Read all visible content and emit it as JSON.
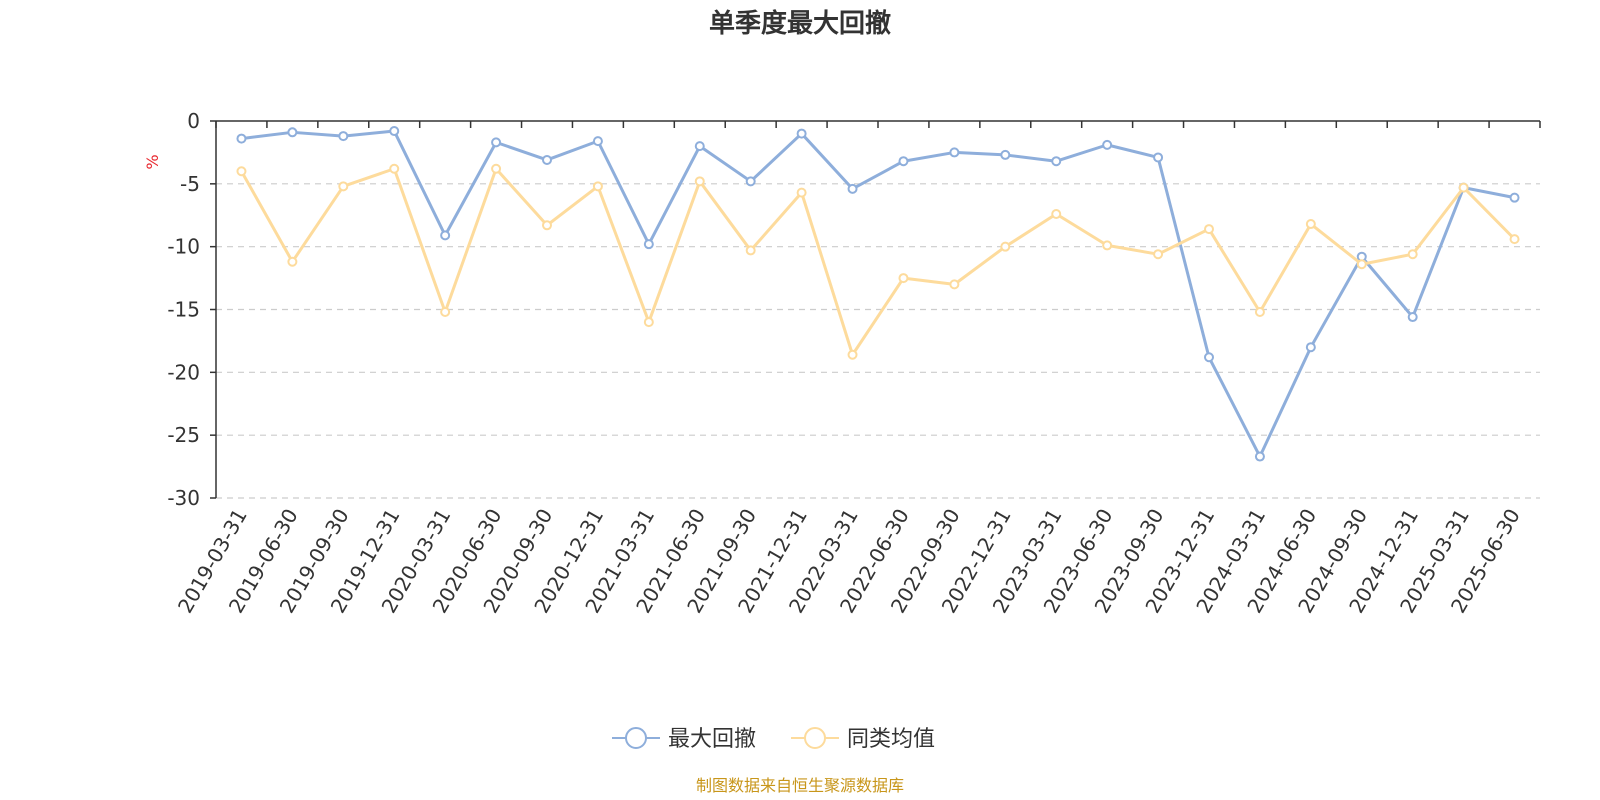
{
  "chart_data": {
    "type": "line",
    "title": "单季度最大回撤",
    "ylabel": "%",
    "ylim": [
      -30,
      0
    ],
    "yticks": [
      0,
      -5,
      -10,
      -15,
      -20,
      -25,
      -30
    ],
    "grid": true,
    "legend_position": "bottom",
    "categories": [
      "2019-03-31",
      "2019-06-30",
      "2019-09-30",
      "2019-12-31",
      "2020-03-31",
      "2020-06-30",
      "2020-09-30",
      "2020-12-31",
      "2021-03-31",
      "2021-06-30",
      "2021-09-30",
      "2021-12-31",
      "2022-03-31",
      "2022-06-30",
      "2022-09-30",
      "2022-12-31",
      "2023-03-31",
      "2023-06-30",
      "2023-09-30",
      "2023-12-31",
      "2024-03-31",
      "2024-06-30",
      "2024-09-30",
      "2024-12-31",
      "2025-03-31",
      "2025-06-30"
    ],
    "series": [
      {
        "name": "最大回撤",
        "color": "#8eaedb",
        "values": [
          -1.4,
          -0.9,
          -1.2,
          -0.8,
          -9.1,
          -1.7,
          -3.1,
          -1.6,
          -9.8,
          -2.0,
          -4.8,
          -1.0,
          -5.4,
          -3.2,
          -2.5,
          -2.7,
          -3.2,
          -1.9,
          -2.9,
          -18.8,
          -26.7,
          -18.0,
          -10.8,
          -15.6,
          -5.3,
          -6.1
        ]
      },
      {
        "name": "同类均值",
        "color": "#fddb9c",
        "values": [
          -4.0,
          -11.2,
          -5.2,
          -3.8,
          -15.2,
          -3.8,
          -8.3,
          -5.2,
          -16.0,
          -4.8,
          -10.3,
          -5.7,
          -18.6,
          -12.5,
          -13.0,
          -10.0,
          -7.4,
          -9.9,
          -10.6,
          -8.6,
          -15.2,
          -8.2,
          -11.4,
          -10.6,
          -5.3,
          -9.4
        ]
      }
    ]
  },
  "source_note": "制图数据来自恒生聚源数据库"
}
